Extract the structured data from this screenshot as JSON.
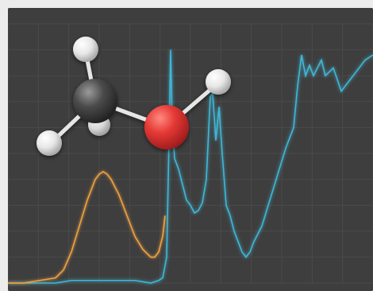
{
  "scene": {
    "description_hidden": "",
    "colors": {
      "panel_bg": "#3e3e3e",
      "grid": "#4a4a4a",
      "cyan": "#3fb7d6",
      "orange": "#f0a040",
      "oxygen": "#e53935",
      "carbon": "#3a3a3a",
      "hydrogen": "#f2f2f2",
      "bond": "#e6e6e6"
    }
  },
  "chart_data": {
    "type": "line",
    "title": "",
    "xlabel": "",
    "ylabel": "",
    "grid": true,
    "series": [
      {
        "values": [
          [
            0,
            0.0
          ],
          [
            10,
            0.0
          ],
          [
            20,
            0.0
          ],
          [
            30,
            0.0
          ],
          [
            40,
            0.0
          ],
          [
            60,
            0.0
          ],
          [
            80,
            0.01
          ],
          [
            100,
            0.01
          ],
          [
            120,
            0.01
          ],
          [
            140,
            0.01
          ],
          [
            160,
            0.01
          ],
          [
            180,
            0.0
          ],
          [
            190,
            0.01
          ],
          [
            195,
            0.02
          ],
          [
            200,
            0.1
          ],
          [
            203,
            0.55
          ],
          [
            205,
            0.9
          ],
          [
            207,
            0.62
          ],
          [
            210,
            0.48
          ],
          [
            215,
            0.44
          ],
          [
            220,
            0.38
          ],
          [
            225,
            0.32
          ],
          [
            230,
            0.3
          ],
          [
            235,
            0.27
          ],
          [
            240,
            0.28
          ],
          [
            245,
            0.31
          ],
          [
            250,
            0.4
          ],
          [
            255,
            0.72
          ],
          [
            258,
            0.73
          ],
          [
            262,
            0.55
          ],
          [
            266,
            0.68
          ],
          [
            270,
            0.5
          ],
          [
            275,
            0.3
          ],
          [
            280,
            0.26
          ],
          [
            285,
            0.2
          ],
          [
            290,
            0.16
          ],
          [
            295,
            0.12
          ],
          [
            300,
            0.1
          ],
          [
            305,
            0.12
          ],
          [
            310,
            0.16
          ],
          [
            320,
            0.22
          ],
          [
            330,
            0.32
          ],
          [
            340,
            0.42
          ],
          [
            350,
            0.52
          ],
          [
            360,
            0.6
          ],
          [
            365,
            0.76
          ],
          [
            370,
            0.88
          ],
          [
            375,
            0.8
          ],
          [
            380,
            0.84
          ],
          [
            385,
            0.8
          ],
          [
            390,
            0.83
          ],
          [
            395,
            0.86
          ],
          [
            400,
            0.8
          ],
          [
            410,
            0.83
          ],
          [
            420,
            0.74
          ],
          [
            430,
            0.78
          ],
          [
            440,
            0.82
          ],
          [
            450,
            0.86
          ],
          [
            460,
            0.88
          ]
        ]
      },
      {
        "values": [
          [
            0,
            0.0
          ],
          [
            20,
            0.0
          ],
          [
            40,
            0.01
          ],
          [
            60,
            0.02
          ],
          [
            70,
            0.05
          ],
          [
            80,
            0.12
          ],
          [
            90,
            0.22
          ],
          [
            100,
            0.32
          ],
          [
            110,
            0.4
          ],
          [
            115,
            0.42
          ],
          [
            120,
            0.43
          ],
          [
            125,
            0.42
          ],
          [
            130,
            0.4
          ],
          [
            140,
            0.34
          ],
          [
            150,
            0.26
          ],
          [
            160,
            0.18
          ],
          [
            170,
            0.13
          ],
          [
            180,
            0.1
          ],
          [
            185,
            0.1
          ],
          [
            190,
            0.12
          ],
          [
            195,
            0.18
          ],
          [
            198,
            0.26
          ]
        ]
      }
    ]
  }
}
